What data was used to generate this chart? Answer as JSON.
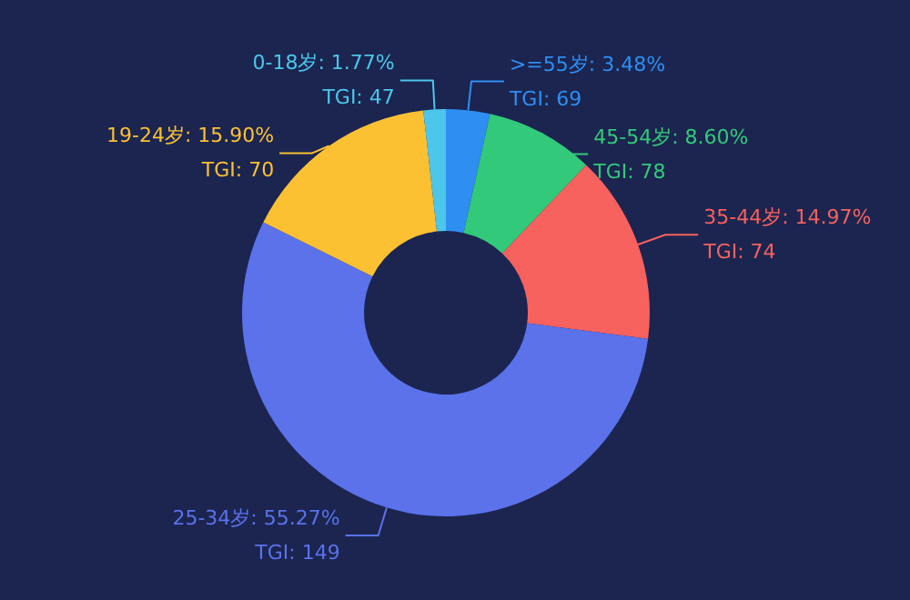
{
  "chart_data": {
    "type": "donut",
    "categories": [
      ">=55岁",
      "45-54岁",
      "35-44岁",
      "25-34岁",
      "19-24岁",
      "0-18岁"
    ],
    "values": [
      3.48,
      8.6,
      14.97,
      55.27,
      15.9,
      1.77
    ],
    "value_labels": [
      ": 3.48%\nTGI: 69",
      ": 8.60%\nTGI: 78",
      ": 14.97%\nTGI: 74",
      ": 55.27%\nTGI: 149",
      ": 15.90%\nTGI: 70",
      ": 1.77%\nTGI: 47"
    ],
    "colors": [
      "#2e8ef2",
      "#33c97a",
      "#f7615e",
      "#5b72eb",
      "#fcc133",
      "#4cc6ea"
    ]
  }
}
